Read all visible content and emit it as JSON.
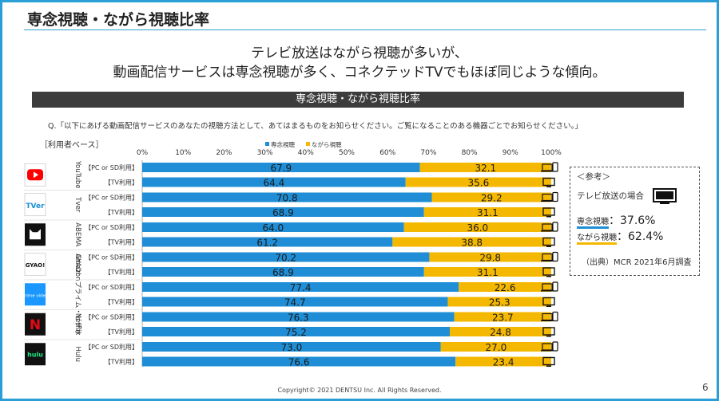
{
  "slide_title": "専念視聴・ながら視聴比率",
  "headline_line1": "テレビ放送はながら視聴が多いが、",
  "headline_line2": "動画配信サービスは専念視聴が多く、コネクテッドTVでもほぼ同じような傾向。",
  "band_title": "専念視聴・ながら視聴比率",
  "question": "Q.「以下にあげる動画配信サービスのあなたの視聴方法として、あてはまるものをお知らせください。ご覧になることのある機器ごとでお知らせください。」",
  "base_label": "［利用者ベース］",
  "reference": {
    "title": "＜参考＞",
    "tv_label": "テレビ放送の場合",
    "focused_label": "専念視聴",
    "focused_value": "：37.6%",
    "nagara_label": "ながら視聴",
    "nagara_value": "：62.4%",
    "source": "（出典）MCR 2021年6月調査"
  },
  "footer": "Copyright© 2021 DENTSU Inc. All Rights Reserved.",
  "page_number": "6",
  "colors": {
    "focused": "#1f8ed6",
    "nagara": "#f5b800",
    "frame": "#2a9fd6"
  },
  "chart_data": {
    "type": "bar",
    "orientation": "horizontal",
    "stacked": true,
    "xlim": [
      0,
      100
    ],
    "x_ticks": [
      "0%",
      "10%",
      "20%",
      "30%",
      "40%",
      "50%",
      "60%",
      "70%",
      "80%",
      "90%",
      "100%"
    ],
    "legend": [
      "専念視聴",
      "ながら視聴"
    ],
    "legend_position": "top",
    "groups": [
      {
        "service": "YouTube",
        "logo": "youtube-logo",
        "icon_text": "",
        "rows": [
          {
            "label": "【PC or SD利用】",
            "device": "pc-sd",
            "focused": 67.9,
            "nagara": 32.1
          },
          {
            "label": "【TV利用】",
            "device": "tv",
            "focused": 64.4,
            "nagara": 35.6
          }
        ]
      },
      {
        "service": "Tver",
        "logo": "tver-logo",
        "icon_text": "TVer",
        "rows": [
          {
            "label": "【PC or SD利用】",
            "device": "pc-sd",
            "focused": 70.8,
            "nagara": 29.2
          },
          {
            "label": "【TV利用】",
            "device": "tv",
            "focused": 68.9,
            "nagara": 31.1
          }
        ]
      },
      {
        "service": "ABEMA",
        "logo": "abema-logo",
        "icon_text": "",
        "rows": [
          {
            "label": "【PC or SD利用】",
            "device": "pc-sd",
            "focused": 64.0,
            "nagara": 36.0
          },
          {
            "label": "【TV利用】",
            "device": "tv",
            "focused": 61.2,
            "nagara": 38.8
          }
        ]
      },
      {
        "service": "GYAO!",
        "logo": "gyao-logo",
        "icon_text": "GYAO!",
        "rows": [
          {
            "label": "【PC or SD利用】",
            "device": "pc-sd",
            "focused": 70.2,
            "nagara": 29.8
          },
          {
            "label": "【TV利用】",
            "device": "tv",
            "focused": 68.9,
            "nagara": 31.1
          }
        ]
      },
      {
        "service": "Amazonプライム・ビデオ",
        "logo": "prime-video-logo",
        "icon_text": "prime video",
        "rows": [
          {
            "label": "【PC or SD利用】",
            "device": "pc-sd",
            "focused": 77.4,
            "nagara": 22.6
          },
          {
            "label": "【TV利用】",
            "device": "tv",
            "focused": 74.7,
            "nagara": 25.3
          }
        ]
      },
      {
        "service": "Netflix",
        "logo": "netflix-logo",
        "icon_text": "N",
        "rows": [
          {
            "label": "【PC or SD利用】",
            "device": "pc-sd",
            "focused": 76.3,
            "nagara": 23.7
          },
          {
            "label": "【TV利用】",
            "device": "tv",
            "focused": 75.2,
            "nagara": 24.8
          }
        ]
      },
      {
        "service": "Hulu",
        "logo": "hulu-logo",
        "icon_text": "hulu",
        "rows": [
          {
            "label": "【PC or SD利用】",
            "device": "pc-sd",
            "focused": 73.0,
            "nagara": 27.0
          },
          {
            "label": "【TV利用】",
            "device": "tv",
            "focused": 76.6,
            "nagara": 23.4
          }
        ]
      }
    ]
  }
}
